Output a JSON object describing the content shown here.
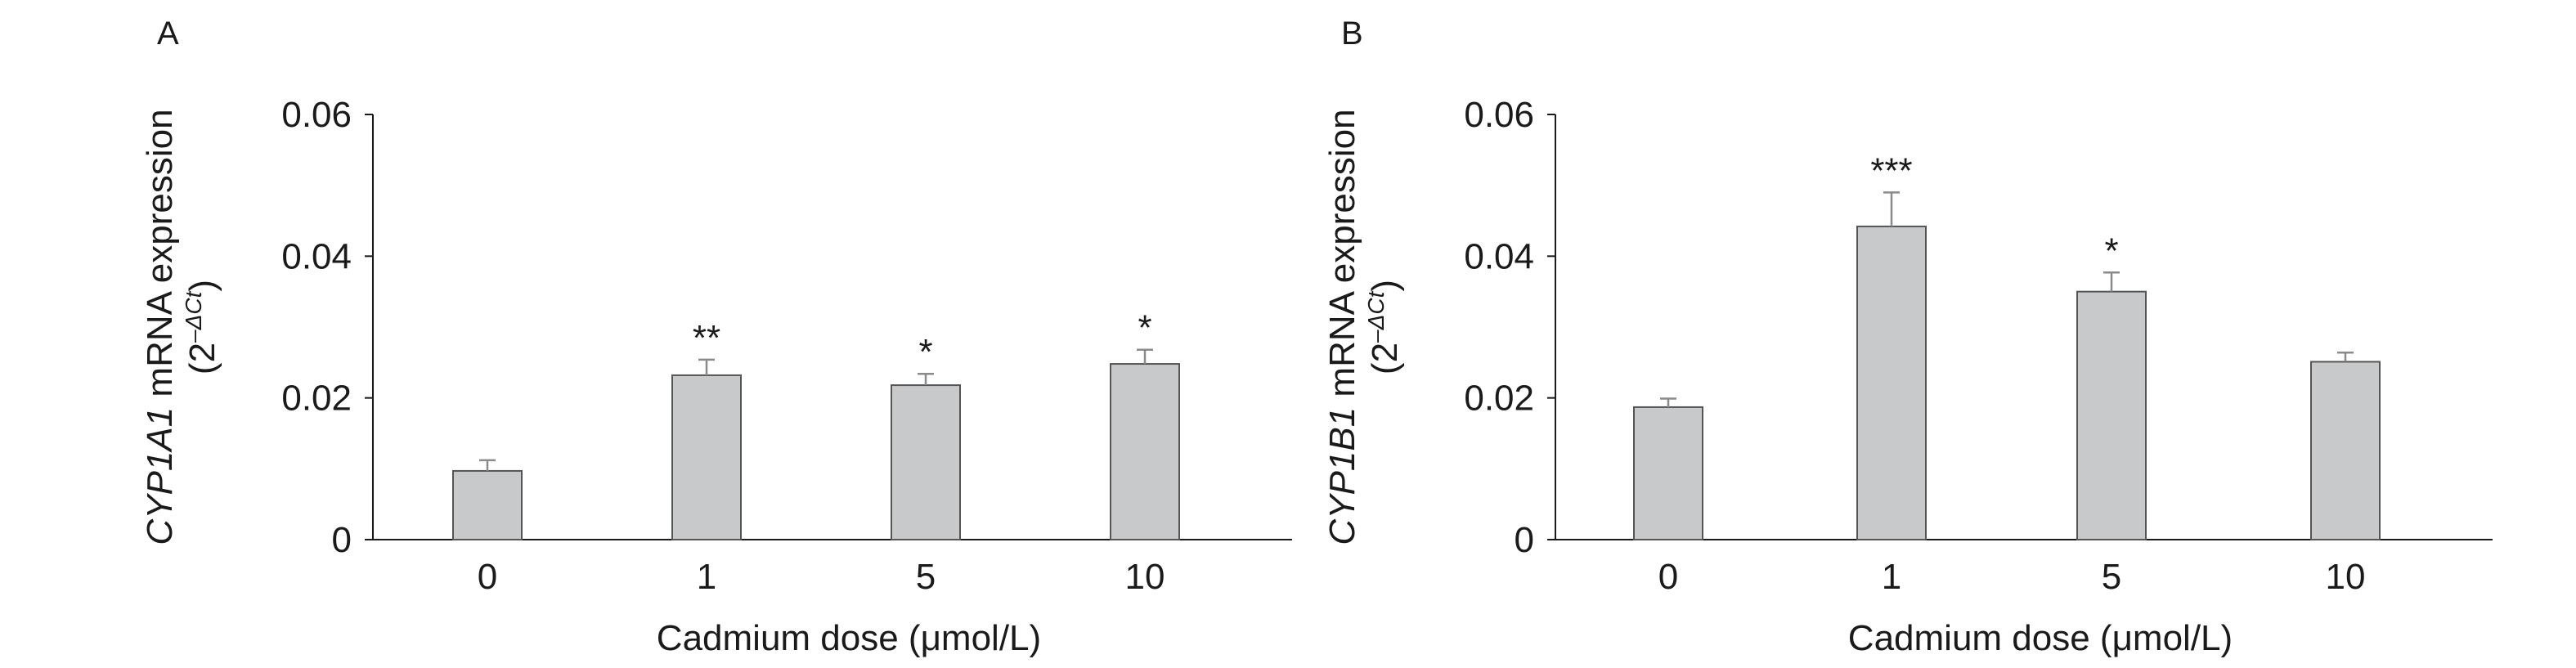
{
  "chart_data": [
    {
      "type": "bar",
      "panel_label": "A",
      "categories": [
        "0",
        "1",
        "5",
        "10"
      ],
      "values": [
        0.0097,
        0.0232,
        0.0218,
        0.0248
      ],
      "error_upper": [
        0.0015,
        0.0022,
        0.0016,
        0.002
      ],
      "significance": [
        "",
        "**",
        "*",
        "*"
      ],
      "ylabel_gene": "CYP1A1",
      "ylabel_rest": " mRNA expression",
      "ylabel_line2_prefix": "(2",
      "ylabel_line2_sup": "–ΔCt",
      "ylabel_line2_suffix": ")",
      "xlabel": "Cadmium dose (μmol/L)",
      "ylim": [
        0,
        0.06
      ],
      "yticks": [
        0,
        0.02,
        0.04,
        0.06
      ],
      "ytick_labels": [
        "0",
        "0.02",
        "0.04",
        "0.06"
      ],
      "grid": false,
      "bar_color": "#c8c9cb"
    },
    {
      "type": "bar",
      "panel_label": "B",
      "categories": [
        "0",
        "1",
        "5",
        "10"
      ],
      "values": [
        0.0187,
        0.0442,
        0.035,
        0.0251
      ],
      "error_upper": [
        0.0012,
        0.0048,
        0.0027,
        0.0013
      ],
      "significance": [
        "",
        "***",
        "*",
        ""
      ],
      "ylabel_gene": "CYP1B1",
      "ylabel_rest": " mRNA expression",
      "ylabel_line2_prefix": "(2",
      "ylabel_line2_sup": "–ΔCt",
      "ylabel_line2_suffix": ")",
      "xlabel": "Cadmium dose (μmol/L)",
      "ylim": [
        0,
        0.06
      ],
      "yticks": [
        0,
        0.02,
        0.04,
        0.06
      ],
      "ytick_labels": [
        "0",
        "0.02",
        "0.04",
        "0.06"
      ],
      "grid": false,
      "bar_color": "#c8c9cb"
    }
  ]
}
